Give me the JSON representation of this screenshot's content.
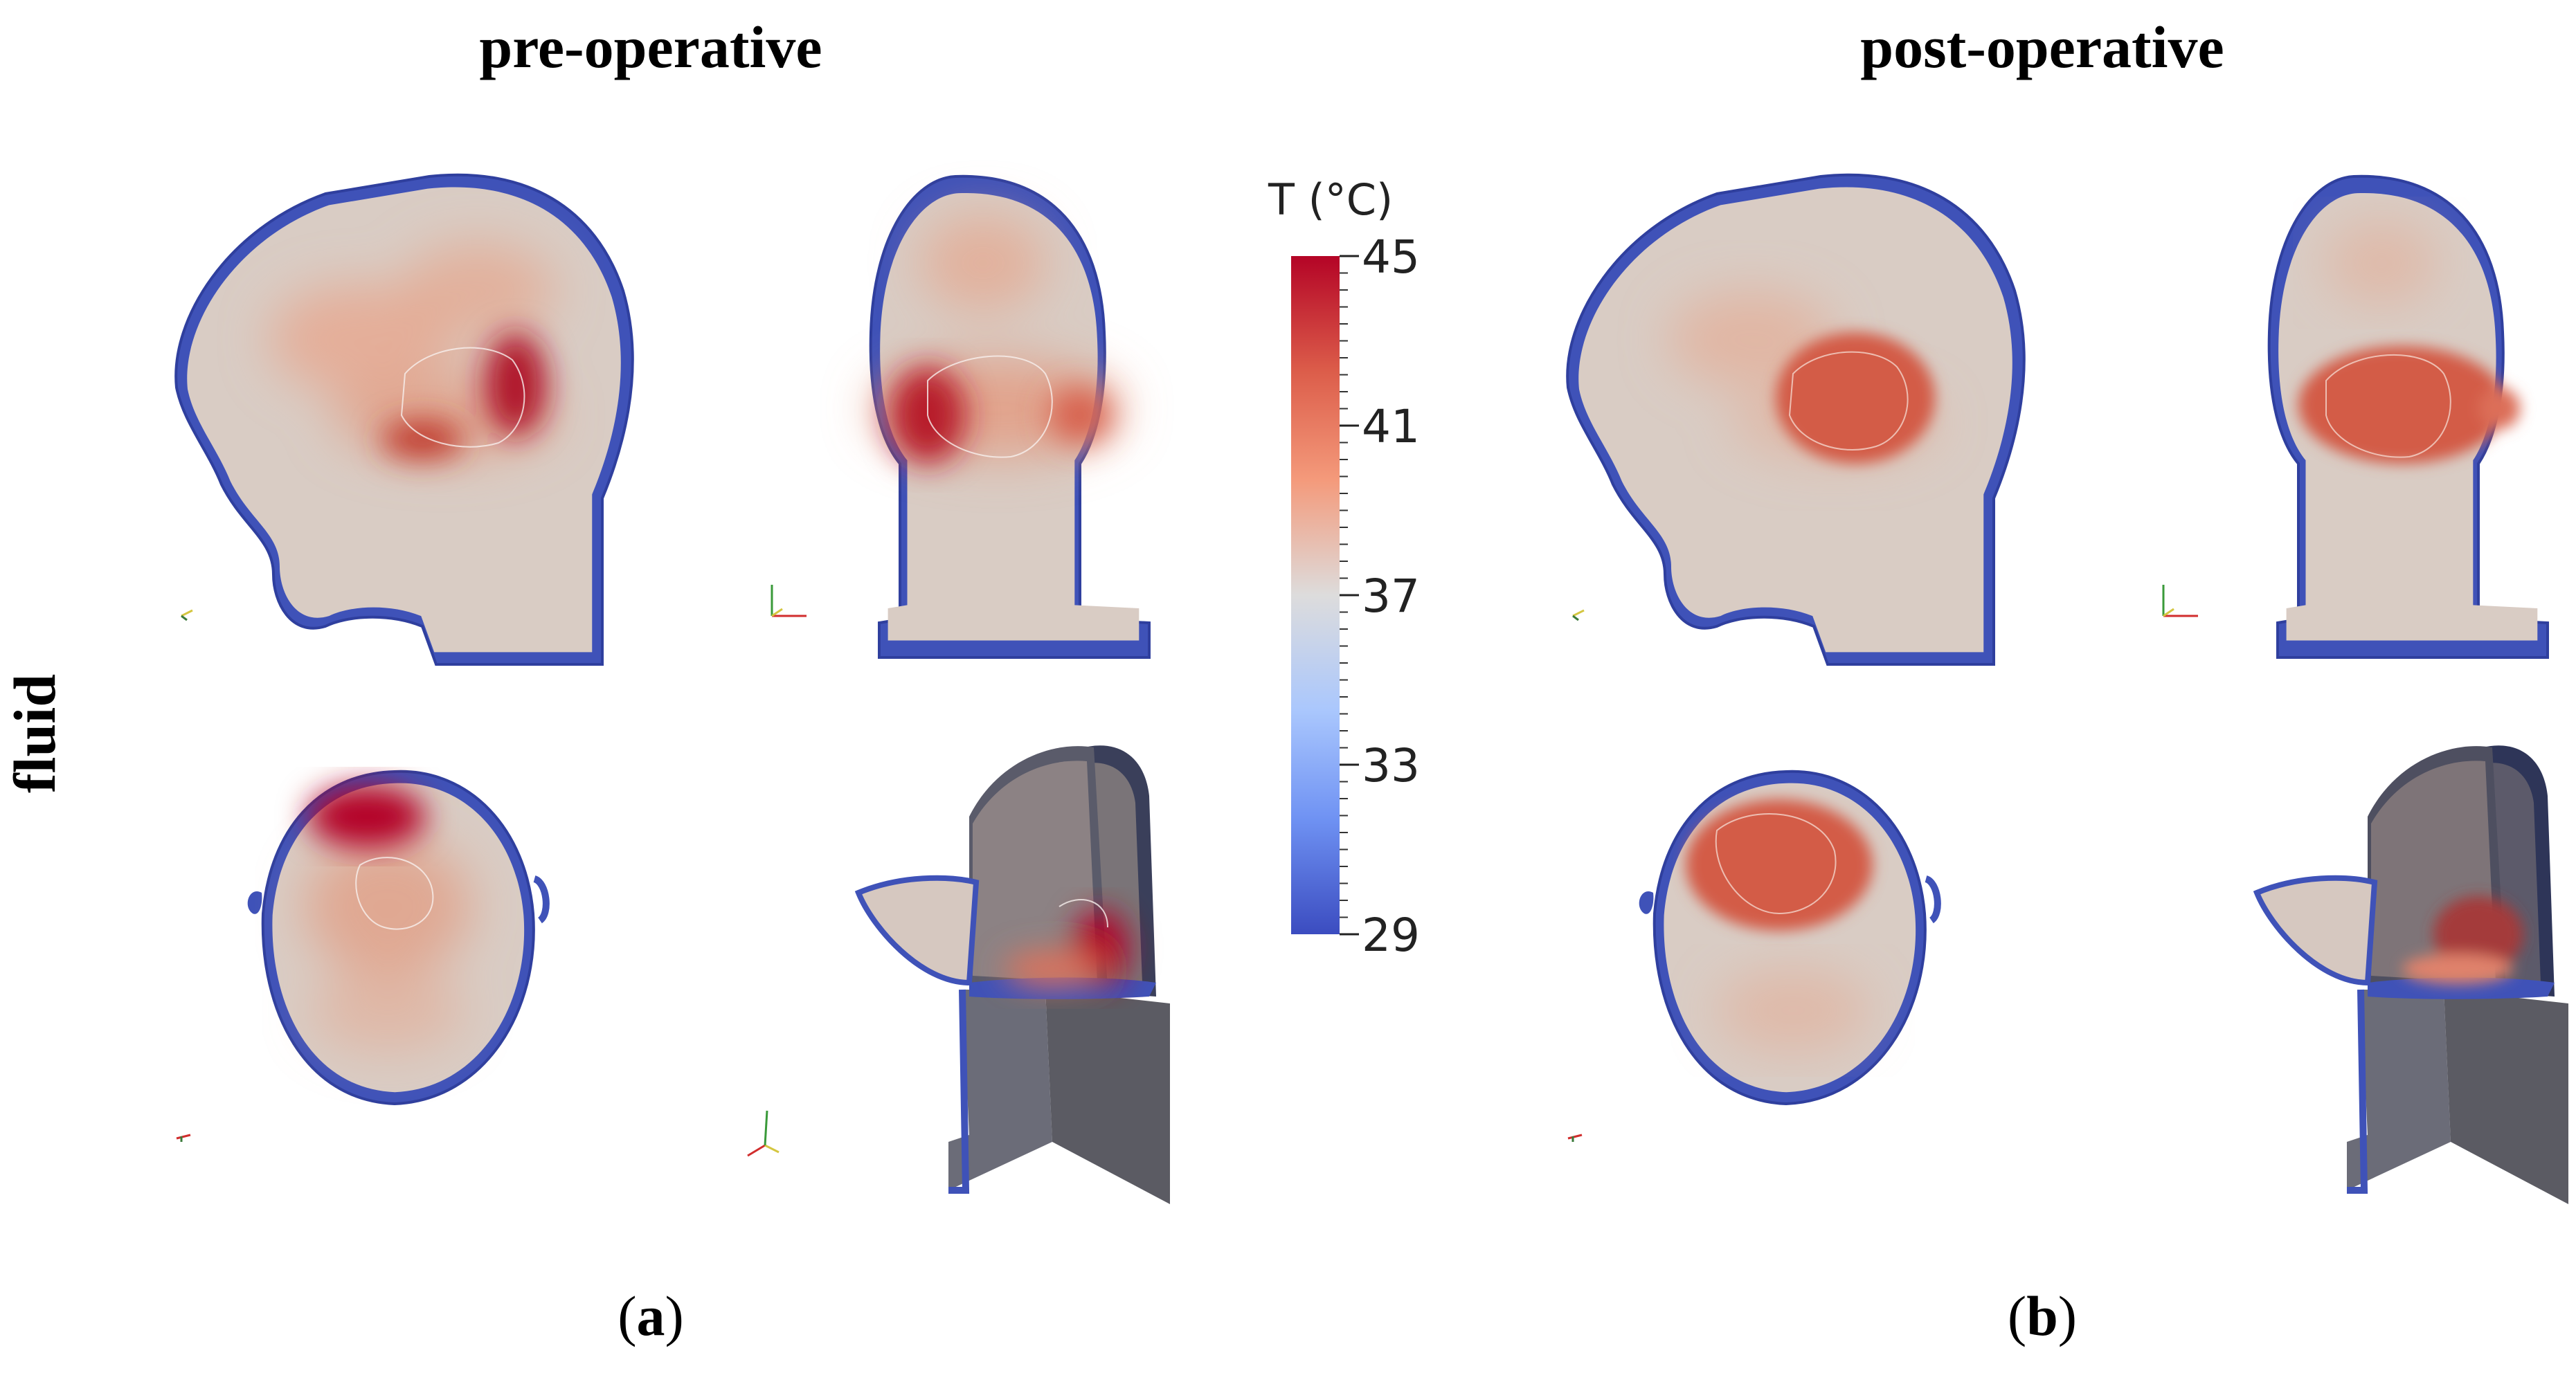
{
  "titles": {
    "left": "pre-operative",
    "right": "post-operative"
  },
  "row_label": "fluid",
  "panels": {
    "a": "a",
    "b": "b"
  },
  "colorbar": {
    "title": "T (°C)",
    "min": 29,
    "max": 45,
    "ticks": [
      "45",
      "41",
      "37",
      "33",
      "29"
    ],
    "colors": [
      "#b40426",
      "#dc5d4a",
      "#f49a7b",
      "#dddcdc",
      "#aac7fd",
      "#6f92f3",
      "#3b4cc0"
    ]
  },
  "views": [
    "sagittal",
    "coronal",
    "axial",
    "3d-cut"
  ]
}
